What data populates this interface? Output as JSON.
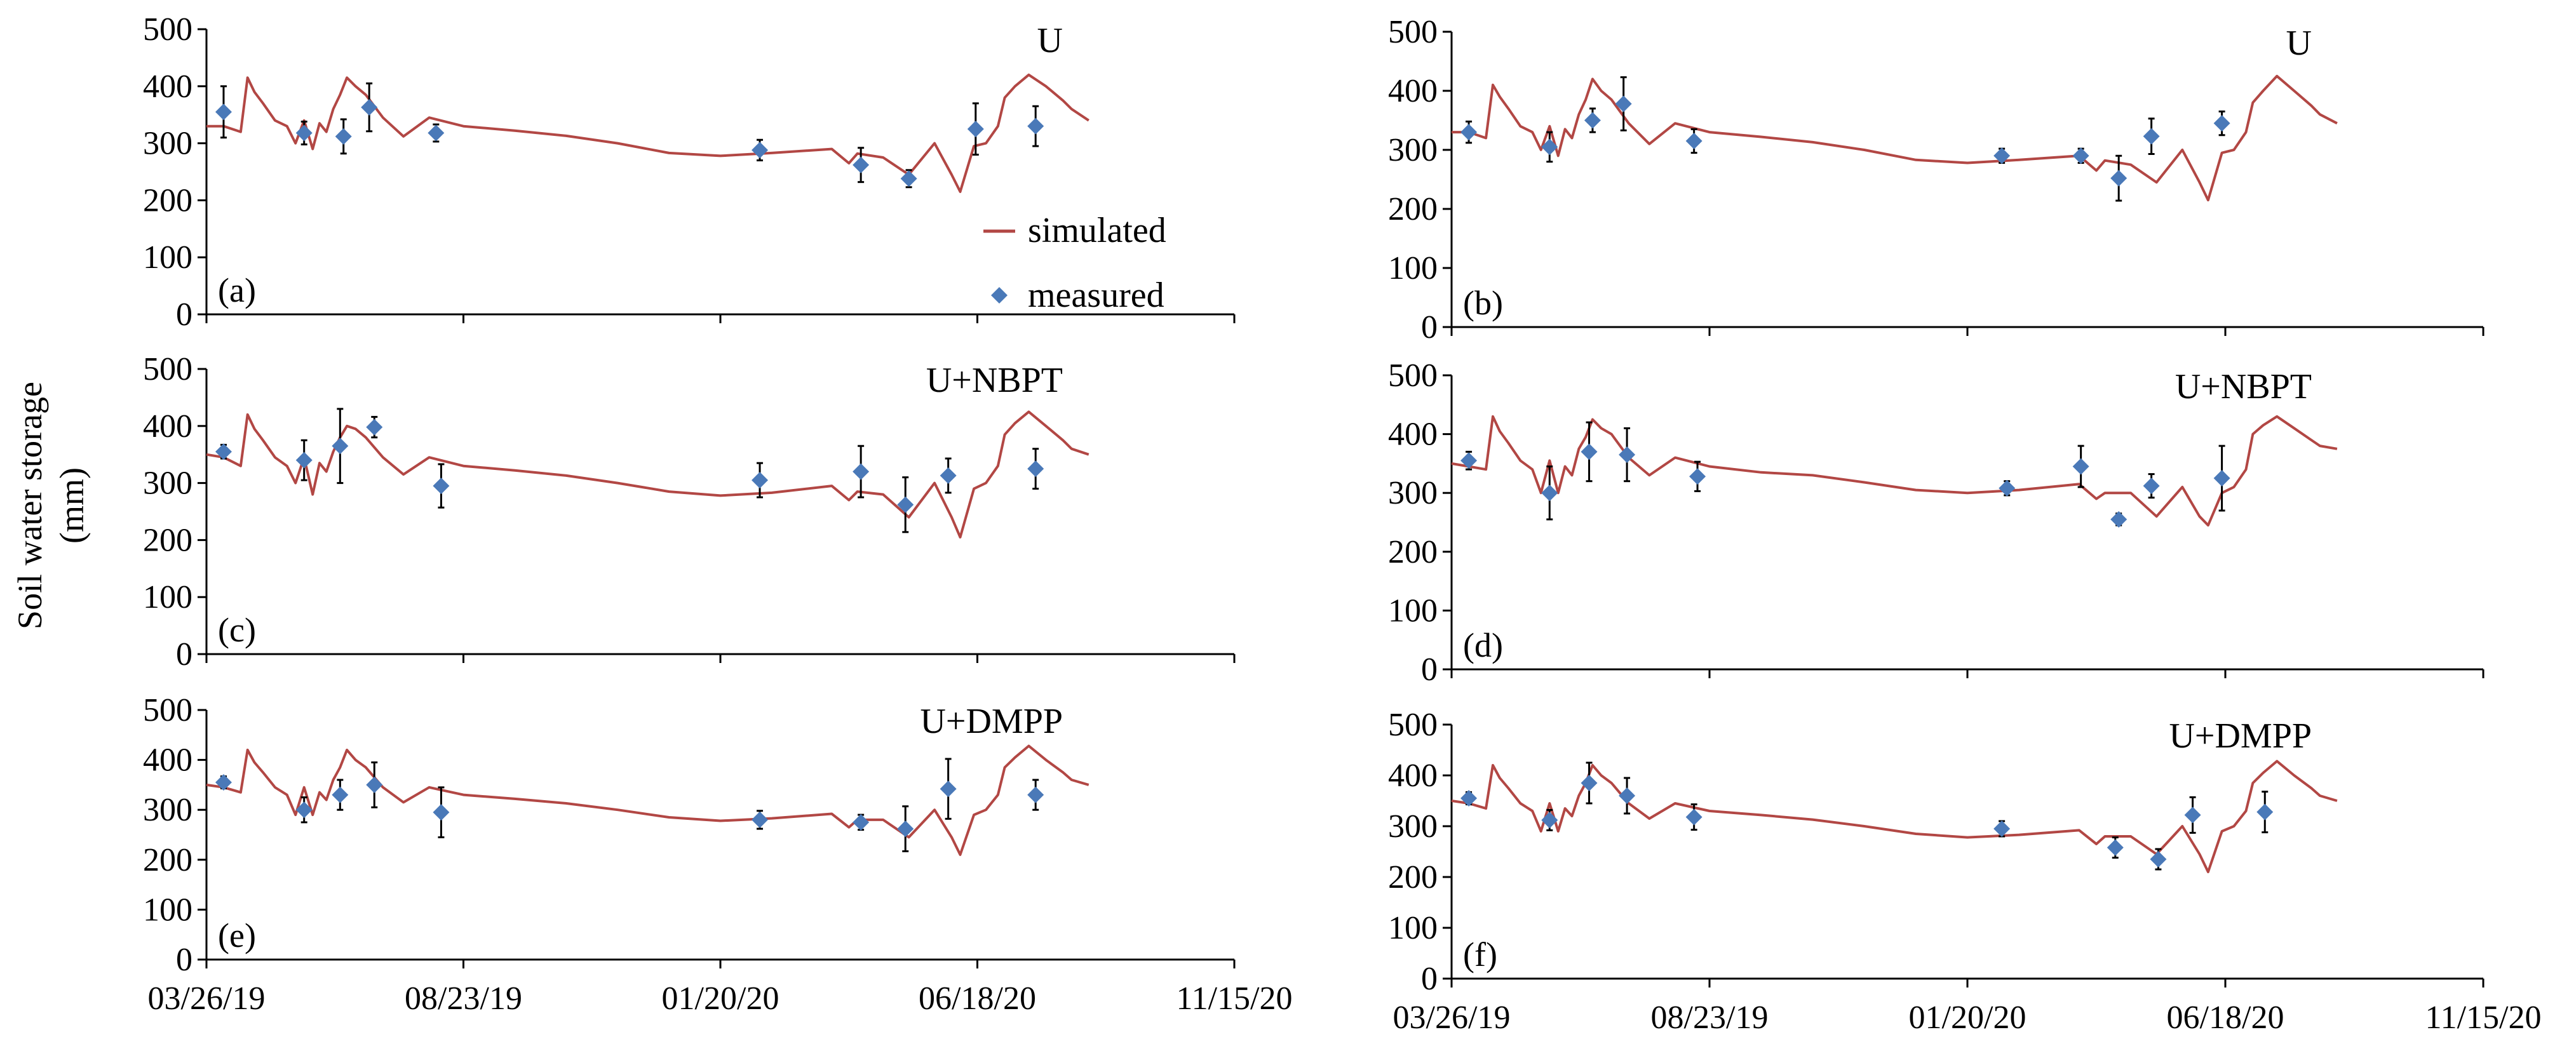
{
  "figure": {
    "y_axis_label_line1": "Soil water storage",
    "y_axis_label_line2": "(mm)"
  },
  "legend": {
    "simulated": "simulated",
    "measured": "measured"
  },
  "colors": {
    "simulated": "#b24744",
    "measured": "#4a79b8",
    "axis": "#000000",
    "error_bar": "#000000"
  },
  "chart_data": [
    {
      "id": "a",
      "type": "line",
      "panel_label": "(a)",
      "title": "U",
      "xlabel": "",
      "ylabel": "Soil water storage (mm)",
      "ylim": [
        0,
        500
      ],
      "yticks": [
        0,
        100,
        200,
        300,
        400,
        500
      ],
      "xlim": [
        0,
        600
      ],
      "xtick_labels": [
        "",
        "",
        "",
        "",
        ""
      ],
      "legend": true,
      "series": [
        {
          "name": "simulated",
          "x": [
            0,
            10,
            20,
            24,
            28,
            33,
            40,
            47,
            52,
            57,
            62,
            66,
            70,
            74,
            78,
            82,
            87,
            93,
            103,
            115,
            130,
            150,
            180,
            210,
            240,
            270,
            300,
            330,
            365,
            375,
            380,
            395,
            410,
            425,
            435,
            440,
            448,
            455,
            462,
            466,
            472,
            480,
            490,
            500,
            505,
            515
          ],
          "y": [
            330,
            330,
            320,
            415,
            390,
            370,
            340,
            330,
            300,
            340,
            290,
            335,
            320,
            360,
            385,
            415,
            400,
            385,
            345,
            312,
            345,
            330,
            322,
            313,
            300,
            283,
            278,
            283,
            290,
            265,
            282,
            275,
            245,
            300,
            245,
            215,
            295,
            300,
            330,
            380,
            400,
            420,
            400,
            375,
            360,
            340
          ]
        },
        {
          "name": "measured",
          "x": [
            10,
            57,
            80,
            95,
            134,
            323,
            382,
            410,
            449,
            484
          ],
          "y": [
            355,
            318,
            312,
            363,
            318,
            288,
            262,
            238,
            325,
            330
          ],
          "err": [
            45,
            20,
            30,
            42,
            15,
            18,
            30,
            15,
            45,
            35
          ]
        }
      ]
    },
    {
      "id": "b",
      "type": "line",
      "panel_label": "(b)",
      "title": "U",
      "xlabel": "",
      "ylabel": "Soil water storage (mm)",
      "ylim": [
        0,
        500
      ],
      "yticks": [
        0,
        100,
        200,
        300,
        400,
        500
      ],
      "xlim": [
        0,
        600
      ],
      "xtick_labels": [
        "",
        "",
        "",
        "",
        ""
      ],
      "legend": false,
      "series": [
        {
          "name": "simulated",
          "x": [
            0,
            10,
            20,
            24,
            28,
            33,
            40,
            47,
            52,
            57,
            62,
            66,
            70,
            74,
            78,
            82,
            87,
            93,
            103,
            115,
            130,
            150,
            180,
            210,
            240,
            270,
            300,
            330,
            365,
            375,
            380,
            395,
            410,
            425,
            435,
            440,
            448,
            455,
            462,
            466,
            472,
            480,
            490,
            500,
            505,
            515
          ],
          "y": [
            330,
            330,
            320,
            410,
            390,
            370,
            340,
            330,
            300,
            340,
            290,
            335,
            320,
            360,
            385,
            420,
            400,
            385,
            345,
            310,
            345,
            330,
            322,
            313,
            300,
            283,
            278,
            283,
            290,
            265,
            282,
            275,
            245,
            300,
            245,
            215,
            295,
            300,
            330,
            380,
            400,
            425,
            400,
            375,
            360,
            345
          ]
        },
        {
          "name": "measured",
          "x": [
            10,
            57,
            82,
            100,
            141,
            320,
            366,
            388,
            407,
            448
          ],
          "y": [
            330,
            305,
            350,
            378,
            315,
            290,
            290,
            252,
            323,
            345
          ],
          "err": [
            18,
            25,
            20,
            45,
            20,
            12,
            12,
            38,
            30,
            20
          ]
        }
      ]
    },
    {
      "id": "c",
      "type": "line",
      "panel_label": "(c)",
      "title": "U+NBPT",
      "xlabel": "",
      "ylabel": "Soil water storage (mm)",
      "ylim": [
        0,
        500
      ],
      "yticks": [
        0,
        100,
        200,
        300,
        400,
        500
      ],
      "xlim": [
        0,
        600
      ],
      "xtick_labels": [
        "",
        "",
        "",
        "",
        ""
      ],
      "legend": false,
      "series": [
        {
          "name": "simulated",
          "x": [
            0,
            10,
            20,
            24,
            28,
            33,
            40,
            47,
            52,
            57,
            62,
            66,
            70,
            74,
            78,
            82,
            87,
            93,
            103,
            115,
            130,
            150,
            180,
            210,
            240,
            270,
            300,
            330,
            365,
            375,
            380,
            395,
            410,
            425,
            435,
            440,
            448,
            455,
            462,
            466,
            472,
            480,
            490,
            500,
            505,
            515
          ],
          "y": [
            350,
            345,
            330,
            420,
            395,
            375,
            345,
            330,
            300,
            345,
            280,
            335,
            320,
            355,
            380,
            400,
            395,
            380,
            345,
            315,
            345,
            330,
            322,
            313,
            300,
            285,
            278,
            283,
            295,
            270,
            285,
            280,
            240,
            300,
            240,
            205,
            290,
            300,
            330,
            385,
            405,
            425,
            400,
            375,
            360,
            350
          ]
        },
        {
          "name": "measured",
          "x": [
            10,
            57,
            78,
            98,
            137,
            323,
            382,
            408,
            433,
            484
          ],
          "y": [
            355,
            340,
            365,
            398,
            295,
            305,
            320,
            262,
            313,
            325
          ],
          "err": [
            12,
            35,
            65,
            18,
            38,
            30,
            45,
            48,
            30,
            35
          ]
        }
      ]
    },
    {
      "id": "d",
      "type": "line",
      "panel_label": "(d)",
      "title": "U+NBPT",
      "xlabel": "",
      "ylabel": "Soil water storage (mm)",
      "ylim": [
        0,
        500
      ],
      "yticks": [
        0,
        100,
        200,
        300,
        400,
        500
      ],
      "xlim": [
        0,
        600
      ],
      "xtick_labels": [
        "",
        "",
        "",
        "",
        ""
      ],
      "legend": false,
      "series": [
        {
          "name": "simulated",
          "x": [
            0,
            10,
            20,
            24,
            28,
            33,
            40,
            47,
            52,
            57,
            62,
            66,
            70,
            74,
            78,
            82,
            87,
            93,
            103,
            115,
            130,
            150,
            180,
            210,
            240,
            270,
            300,
            330,
            365,
            375,
            380,
            395,
            410,
            425,
            435,
            440,
            448,
            455,
            462,
            466,
            472,
            480,
            490,
            500,
            505,
            515
          ],
          "y": [
            350,
            345,
            340,
            430,
            405,
            385,
            355,
            340,
            300,
            355,
            300,
            345,
            330,
            375,
            395,
            425,
            410,
            400,
            360,
            330,
            360,
            345,
            335,
            330,
            318,
            305,
            300,
            305,
            315,
            290,
            300,
            300,
            260,
            310,
            260,
            245,
            300,
            310,
            340,
            400,
            415,
            430,
            410,
            390,
            380,
            375
          ]
        },
        {
          "name": "measured",
          "x": [
            10,
            57,
            80,
            102,
            143,
            323,
            366,
            388,
            407,
            448
          ],
          "y": [
            355,
            300,
            370,
            365,
            328,
            308,
            345,
            255,
            312,
            325
          ],
          "err": [
            15,
            45,
            50,
            45,
            25,
            12,
            35,
            10,
            20,
            55
          ]
        }
      ]
    },
    {
      "id": "e",
      "type": "line",
      "panel_label": "(e)",
      "title": "U+DMPP",
      "xlabel": "",
      "ylabel": "Soil water storage (mm)",
      "ylim": [
        0,
        500
      ],
      "yticks": [
        0,
        100,
        200,
        300,
        400,
        500
      ],
      "xlim": [
        0,
        600
      ],
      "xtick_labels": [
        "03/26/19",
        "08/23/19",
        "01/20/20",
        "06/18/20",
        "11/15/20"
      ],
      "legend": false,
      "series": [
        {
          "name": "simulated",
          "x": [
            0,
            10,
            20,
            24,
            28,
            33,
            40,
            47,
            52,
            57,
            62,
            66,
            70,
            74,
            78,
            82,
            87,
            93,
            103,
            115,
            130,
            150,
            180,
            210,
            240,
            270,
            300,
            330,
            365,
            375,
            380,
            395,
            410,
            425,
            435,
            440,
            448,
            455,
            462,
            466,
            472,
            480,
            490,
            500,
            505,
            515
          ],
          "y": [
            350,
            345,
            335,
            420,
            395,
            375,
            345,
            330,
            290,
            345,
            290,
            335,
            320,
            360,
            385,
            420,
            400,
            385,
            345,
            315,
            345,
            330,
            322,
            313,
            300,
            285,
            278,
            283,
            292,
            265,
            280,
            280,
            245,
            300,
            245,
            210,
            290,
            300,
            330,
            385,
            405,
            428,
            400,
            375,
            360,
            350
          ]
        },
        {
          "name": "measured",
          "x": [
            10,
            57,
            78,
            98,
            137,
            323,
            382,
            408,
            433,
            484
          ],
          "y": [
            355,
            300,
            330,
            350,
            295,
            280,
            275,
            262,
            342,
            330
          ],
          "err": [
            12,
            25,
            30,
            45,
            50,
            18,
            15,
            45,
            60,
            30
          ]
        }
      ]
    },
    {
      "id": "f",
      "type": "line",
      "panel_label": "(f)",
      "title": "U+DMPP",
      "xlabel": "",
      "ylabel": "Soil water storage (mm)",
      "ylim": [
        0,
        500
      ],
      "yticks": [
        0,
        100,
        200,
        300,
        400,
        500
      ],
      "xlim": [
        0,
        600
      ],
      "xtick_labels": [
        "03/26/19",
        "08/23/19",
        "01/20/20",
        "06/18/20",
        "11/15/20"
      ],
      "legend": false,
      "series": [
        {
          "name": "simulated",
          "x": [
            0,
            10,
            20,
            24,
            28,
            33,
            40,
            47,
            52,
            57,
            62,
            66,
            70,
            74,
            78,
            82,
            87,
            93,
            103,
            115,
            130,
            150,
            180,
            210,
            240,
            270,
            300,
            330,
            365,
            375,
            380,
            395,
            410,
            425,
            435,
            440,
            448,
            455,
            462,
            466,
            472,
            480,
            490,
            500,
            505,
            515
          ],
          "y": [
            350,
            345,
            335,
            420,
            395,
            375,
            345,
            330,
            290,
            345,
            290,
            335,
            320,
            360,
            385,
            420,
            400,
            385,
            345,
            315,
            345,
            330,
            322,
            313,
            300,
            285,
            278,
            283,
            292,
            265,
            280,
            280,
            245,
            300,
            245,
            210,
            290,
            300,
            330,
            385,
            405,
            428,
            400,
            375,
            360,
            350
          ]
        },
        {
          "name": "measured",
          "x": [
            10,
            57,
            80,
            102,
            141,
            320,
            386,
            411,
            431,
            473
          ],
          "y": [
            355,
            312,
            385,
            360,
            318,
            295,
            258,
            235,
            322,
            328
          ],
          "err": [
            12,
            20,
            40,
            35,
            25,
            15,
            20,
            20,
            35,
            40
          ]
        }
      ]
    }
  ]
}
